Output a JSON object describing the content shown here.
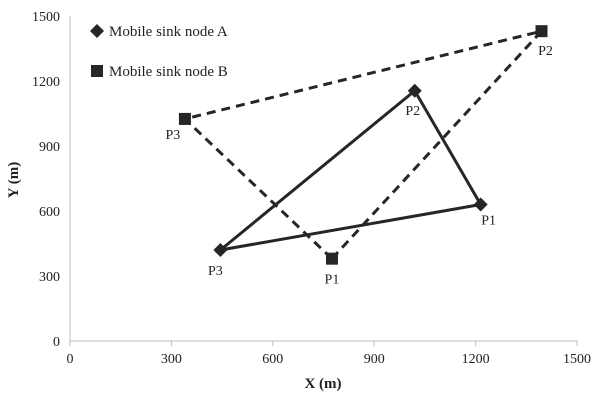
{
  "chart_data": {
    "type": "scatter",
    "xlabel": "X (m)",
    "ylabel": "Y (m)",
    "xlim": [
      0,
      1500
    ],
    "ylim": [
      0,
      1500
    ],
    "x_ticks": [
      "0",
      "300",
      "600",
      "900",
      "1200",
      "1500"
    ],
    "y_ticks": [
      "0",
      "300",
      "600",
      "900",
      "1200",
      "1500"
    ],
    "grid": false,
    "legend_position": "top-left",
    "series": [
      {
        "name": "Mobile sink node A",
        "marker": "diamond",
        "line": "solid",
        "closed": true,
        "color": "#262626",
        "points": [
          {
            "label": "P1",
            "x": 1215,
            "y": 630
          },
          {
            "label": "P2",
            "x": 1020,
            "y": 1155
          },
          {
            "label": "P3",
            "x": 445,
            "y": 420
          }
        ]
      },
      {
        "name": "Mobile sink node B",
        "marker": "square",
        "line": "dashed",
        "closed": true,
        "color": "#262626",
        "points": [
          {
            "label": "P1",
            "x": 775,
            "y": 380
          },
          {
            "label": "P2",
            "x": 1395,
            "y": 1430
          },
          {
            "label": "P3",
            "x": 340,
            "y": 1025
          }
        ]
      }
    ]
  }
}
